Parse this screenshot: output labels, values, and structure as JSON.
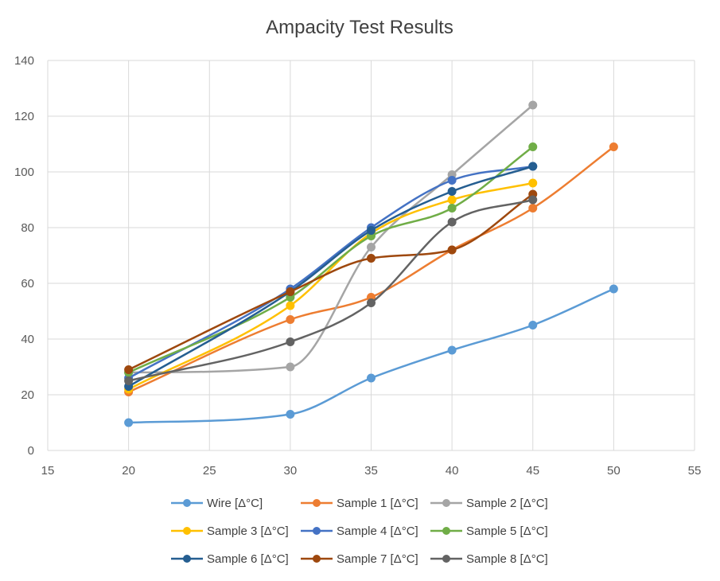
{
  "chart_data": {
    "type": "scatter",
    "title": "Ampacity Test Results",
    "xlabel": "",
    "ylabel": "",
    "xlim": [
      15,
      55
    ],
    "ylim": [
      0,
      140
    ],
    "xticks": [
      15,
      20,
      25,
      30,
      35,
      40,
      45,
      50,
      55
    ],
    "yticks": [
      0,
      20,
      40,
      60,
      80,
      100,
      120,
      140
    ],
    "grid": true,
    "smooth": true,
    "legend_position": "bottom",
    "series": [
      {
        "name": "Wire [Δ°C]",
        "color": "#5b9bd5",
        "x": [
          20,
          30,
          35,
          40,
          45,
          50
        ],
        "y": [
          10,
          13,
          26,
          36,
          45,
          58
        ]
      },
      {
        "name": "Sample 1 [Δ°C]",
        "color": "#ed7d31",
        "x": [
          20,
          30,
          35,
          40,
          45,
          50
        ],
        "y": [
          21,
          47,
          55,
          72,
          87,
          109
        ]
      },
      {
        "name": "Sample 2 [Δ°C]",
        "color": "#a5a5a5",
        "x": [
          20,
          30,
          35,
          40,
          45
        ],
        "y": [
          28,
          30,
          73,
          99,
          124
        ]
      },
      {
        "name": "Sample 3 [Δ°C]",
        "color": "#ffc000",
        "x": [
          20,
          30,
          35,
          40,
          45
        ],
        "y": [
          22,
          52,
          78,
          90,
          96
        ]
      },
      {
        "name": "Sample 4 [Δ°C]",
        "color": "#4472c4",
        "x": [
          20,
          30,
          35,
          40,
          45
        ],
        "y": [
          26,
          58,
          80,
          97,
          102
        ]
      },
      {
        "name": "Sample 5 [Δ°C]",
        "color": "#70ad47",
        "x": [
          20,
          30,
          35,
          40,
          45
        ],
        "y": [
          28,
          55,
          77,
          87,
          109
        ]
      },
      {
        "name": "Sample 6 [Δ°C]",
        "color": "#255e91",
        "x": [
          20,
          30,
          35,
          40,
          45
        ],
        "y": [
          23,
          57,
          79,
          93,
          102
        ]
      },
      {
        "name": "Sample 7 [Δ°C]",
        "color": "#9e480e",
        "x": [
          20,
          30,
          35,
          40,
          45
        ],
        "y": [
          29,
          57,
          69,
          72,
          92
        ]
      },
      {
        "name": "Sample 8 [Δ°C]",
        "color": "#636363",
        "x": [
          20,
          30,
          35,
          40,
          45
        ],
        "y": [
          25,
          39,
          53,
          82,
          90
        ]
      }
    ]
  }
}
